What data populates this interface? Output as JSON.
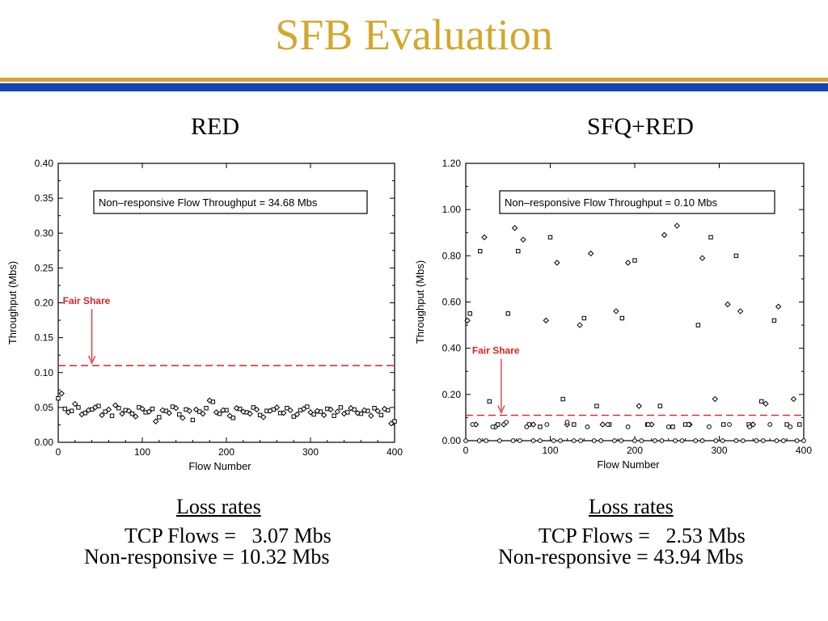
{
  "slide": {
    "title": "SFB Evaluation",
    "accent_gold": "#d4a72c",
    "accent_blue": "#1445b4"
  },
  "panels": [
    {
      "label": "RED",
      "loss_rates": {
        "heading": "Loss rates",
        "tcp": "TCP Flows =   3.07 Mbs",
        "nonresp": "Non-responsive = 10.32 Mbs"
      }
    },
    {
      "label": "SFQ+RED",
      "loss_rates": {
        "heading": "Loss rates",
        "tcp": "TCP Flows =   2.53 Mbs",
        "nonresp": "Non-responsive = 43.94 Mbs"
      }
    }
  ],
  "chart_data": [
    {
      "type": "scatter",
      "xlabel": "Flow Number",
      "ylabel": "Throughput (Mbs)",
      "xlim": [
        0,
        400
      ],
      "ylim": [
        0,
        0.4
      ],
      "xticks": [
        0,
        100,
        200,
        300,
        400
      ],
      "yticks": [
        "0.00",
        "0.05",
        "0.10",
        "0.15",
        "0.20",
        "0.25",
        "0.30",
        "0.35",
        "0.40"
      ],
      "legend_text": "Non–responsive Flow Throughput = 34.68 Mbs",
      "fair_share": {
        "label": "Fair Share",
        "value": 0.11,
        "arrow_x": 40,
        "color": "#dd2222"
      },
      "series": [
        {
          "marker": "square",
          "x": [
            0,
            8,
            16,
            24,
            32,
            40,
            48,
            56,
            64,
            72,
            80,
            88,
            96,
            104,
            112,
            120,
            128,
            136,
            144,
            152,
            160,
            168,
            176,
            184,
            192,
            200,
            208,
            216,
            224,
            232,
            240,
            248,
            256,
            264,
            272,
            280,
            288,
            296,
            304,
            312,
            320,
            328,
            336,
            344,
            352,
            360,
            368,
            376,
            384,
            392,
            400
          ],
          "y": [
            0.063,
            0.048,
            0.045,
            0.05,
            0.042,
            0.047,
            0.052,
            0.044,
            0.038,
            0.049,
            0.046,
            0.041,
            0.05,
            0.043,
            0.048,
            0.036,
            0.045,
            0.051,
            0.04,
            0.047,
            0.032,
            0.044,
            0.049,
            0.058,
            0.041,
            0.046,
            0.035,
            0.048,
            0.043,
            0.05,
            0.039,
            0.045,
            0.047,
            0.042,
            0.049,
            0.037,
            0.046,
            0.051,
            0.04,
            0.044,
            0.048,
            0.038,
            0.05,
            0.043,
            0.047,
            0.041,
            0.045,
            0.049,
            0.039,
            0.046,
            0.03
          ]
        },
        {
          "marker": "diamond",
          "x": [
            4,
            12,
            20,
            28,
            36,
            44,
            52,
            60,
            68,
            76,
            84,
            92,
            100,
            108,
            116,
            124,
            132,
            140,
            148,
            156,
            164,
            172,
            180,
            188,
            196,
            204,
            212,
            220,
            228,
            236,
            244,
            252,
            260,
            268,
            276,
            284,
            292,
            300,
            308,
            316,
            324,
            332,
            340,
            348,
            356,
            364,
            372,
            380,
            388,
            396
          ],
          "y": [
            0.07,
            0.043,
            0.055,
            0.04,
            0.046,
            0.05,
            0.039,
            0.047,
            0.053,
            0.041,
            0.045,
            0.037,
            0.048,
            0.044,
            0.03,
            0.046,
            0.042,
            0.049,
            0.035,
            0.045,
            0.047,
            0.041,
            0.06,
            0.043,
            0.046,
            0.038,
            0.049,
            0.044,
            0.041,
            0.047,
            0.036,
            0.045,
            0.05,
            0.042,
            0.046,
            0.04,
            0.048,
            0.043,
            0.045,
            0.039,
            0.047,
            0.044,
            0.041,
            0.049,
            0.042,
            0.046,
            0.038,
            0.045,
            0.048,
            0.027
          ]
        }
      ]
    },
    {
      "type": "scatter",
      "xlabel": "Flow Number",
      "ylabel": "Throughput (Mbs)",
      "xlim": [
        0,
        400
      ],
      "ylim": [
        0,
        1.2
      ],
      "xticks": [
        0,
        100,
        200,
        300,
        400
      ],
      "yticks": [
        "0.00",
        "0.20",
        "0.40",
        "0.60",
        "0.80",
        "1.00",
        "1.20"
      ],
      "legend_text": "Non–responsive Flow Throughput =  0.10 Mbs",
      "fair_share": {
        "label": "Fair Share",
        "value": 0.11,
        "arrow_x": 42,
        "color": "#dd2222"
      },
      "series": [
        {
          "marker": "square",
          "x": [
            5,
            17,
            28,
            38,
            50,
            62,
            75,
            88,
            100,
            115,
            128,
            140,
            155,
            170,
            185,
            200,
            215,
            230,
            245,
            260,
            275,
            290,
            305,
            320,
            335,
            350,
            365,
            380,
            395
          ],
          "y": [
            0.55,
            0.82,
            0.17,
            0.07,
            0.55,
            0.82,
            0.07,
            0.06,
            0.88,
            0.18,
            0.07,
            0.53,
            0.15,
            0.07,
            0.53,
            0.78,
            0.07,
            0.15,
            0.06,
            0.07,
            0.5,
            0.88,
            0.07,
            0.8,
            0.07,
            0.17,
            0.52,
            0.07,
            0.07
          ]
        },
        {
          "marker": "diamond",
          "x": [
            2,
            12,
            22,
            35,
            45,
            58,
            68,
            80,
            95,
            108,
            120,
            135,
            148,
            162,
            178,
            192,
            205,
            220,
            235,
            250,
            265,
            280,
            295,
            310,
            325,
            340,
            355,
            370,
            388
          ],
          "y": [
            0.52,
            0.07,
            0.88,
            0.06,
            0.07,
            0.92,
            0.87,
            0.07,
            0.52,
            0.77,
            0.07,
            0.5,
            0.81,
            0.07,
            0.56,
            0.77,
            0.15,
            0.07,
            0.89,
            0.93,
            0.07,
            0.79,
            0.18,
            0.59,
            0.56,
            0.07,
            0.16,
            0.58,
            0.18
          ]
        },
        {
          "marker": "circle",
          "x": [
            0,
            8,
            16,
            24,
            32,
            40,
            48,
            56,
            64,
            72,
            80,
            88,
            96,
            104,
            112,
            120,
            128,
            136,
            144,
            152,
            160,
            168,
            176,
            184,
            192,
            200,
            208,
            216,
            224,
            232,
            240,
            248,
            256,
            264,
            272,
            280,
            288,
            296,
            304,
            312,
            320,
            328,
            336,
            344,
            352,
            360,
            368,
            376,
            384,
            392,
            400
          ],
          "y": [
            0.0,
            0.07,
            0.0,
            0.0,
            0.06,
            0.0,
            0.08,
            0.0,
            0.0,
            0.06,
            0.0,
            0.0,
            0.07,
            0.0,
            0.0,
            0.08,
            0.0,
            0.0,
            0.06,
            0.0,
            0.0,
            0.07,
            0.0,
            0.0,
            0.06,
            0.0,
            0.0,
            0.07,
            0.0,
            0.0,
            0.06,
            0.0,
            0.0,
            0.07,
            0.0,
            0.0,
            0.06,
            0.0,
            0.0,
            0.07,
            0.0,
            0.0,
            0.06,
            0.0,
            0.0,
            0.07,
            0.0,
            0.0,
            0.06,
            0.0,
            0.0
          ]
        }
      ]
    }
  ]
}
